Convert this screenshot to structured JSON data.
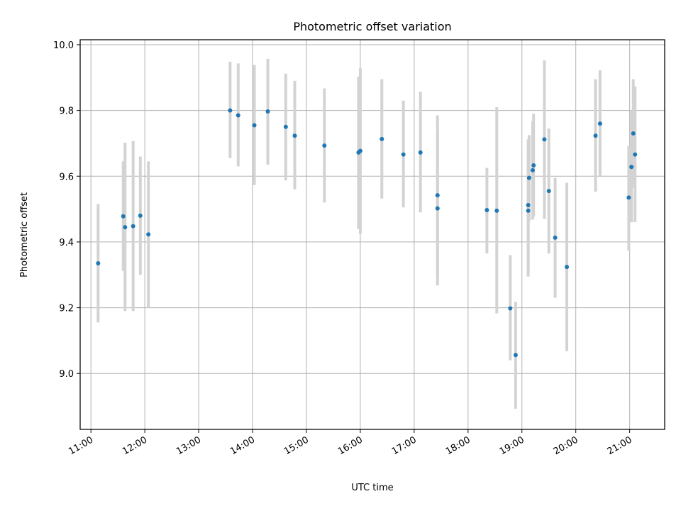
{
  "chart_data": {
    "type": "scatter",
    "title": "Photometric offset variation",
    "xlabel": "UTC time",
    "ylabel": "Photometric offset",
    "x_unit": "UTC time (HH:MM)",
    "xlim": [
      "10:48",
      "21:39"
    ],
    "ylim": [
      8.83,
      10.015
    ],
    "grid": true,
    "x_ticks": [
      "11:00",
      "12:00",
      "13:00",
      "14:00",
      "15:00",
      "16:00",
      "17:00",
      "18:00",
      "19:00",
      "20:00",
      "21:00"
    ],
    "y_ticks": [
      "9.0",
      "9.2",
      "9.4",
      "9.6",
      "9.8",
      "10.0"
    ],
    "marker_color": "#1f77b4",
    "errorbar_color": "#d3d3d3",
    "points": [
      {
        "x": "11:08",
        "y": 9.335,
        "lo": 9.155,
        "hi": 9.515
      },
      {
        "x": "11:36",
        "y": 9.478,
        "lo": 9.312,
        "hi": 9.645
      },
      {
        "x": "11:38",
        "y": 9.445,
        "lo": 9.19,
        "hi": 9.702
      },
      {
        "x": "11:47",
        "y": 9.448,
        "lo": 9.19,
        "hi": 9.707
      },
      {
        "x": "11:55",
        "y": 9.48,
        "lo": 9.3,
        "hi": 9.66
      },
      {
        "x": "12:04",
        "y": 9.423,
        "lo": 9.2,
        "hi": 9.645
      },
      {
        "x": "13:35",
        "y": 9.8,
        "lo": 9.655,
        "hi": 9.948
      },
      {
        "x": "13:44",
        "y": 9.785,
        "lo": 9.63,
        "hi": 9.943
      },
      {
        "x": "14:02",
        "y": 9.755,
        "lo": 9.573,
        "hi": 9.938
      },
      {
        "x": "14:17",
        "y": 9.797,
        "lo": 9.635,
        "hi": 9.957
      },
      {
        "x": "14:37",
        "y": 9.75,
        "lo": 9.587,
        "hi": 9.912
      },
      {
        "x": "14:47",
        "y": 9.723,
        "lo": 9.56,
        "hi": 9.89
      },
      {
        "x": "15:20",
        "y": 9.693,
        "lo": 9.52,
        "hi": 9.867
      },
      {
        "x": "15:58",
        "y": 9.672,
        "lo": 9.44,
        "hi": 9.903
      },
      {
        "x": "16:00",
        "y": 9.677,
        "lo": 9.425,
        "hi": 9.928
      },
      {
        "x": "16:24",
        "y": 9.713,
        "lo": 9.532,
        "hi": 9.895
      },
      {
        "x": "16:48",
        "y": 9.666,
        "lo": 9.505,
        "hi": 9.83
      },
      {
        "x": "17:07",
        "y": 9.672,
        "lo": 9.49,
        "hi": 9.857
      },
      {
        "x": "17:26",
        "y": 9.542,
        "lo": 9.3,
        "hi": 9.785
      },
      {
        "x": "17:26",
        "y": 9.502,
        "lo": 9.268,
        "hi": 9.735
      },
      {
        "x": "18:21",
        "y": 9.497,
        "lo": 9.365,
        "hi": 9.625
      },
      {
        "x": "18:32",
        "y": 9.495,
        "lo": 9.183,
        "hi": 9.81
      },
      {
        "x": "18:47",
        "y": 9.198,
        "lo": 9.04,
        "hi": 9.36
      },
      {
        "x": "18:53",
        "y": 9.056,
        "lo": 8.893,
        "hi": 9.218
      },
      {
        "x": "19:07",
        "y": 9.512,
        "lo": 9.31,
        "hi": 9.712
      },
      {
        "x": "19:07",
        "y": 9.495,
        "lo": 9.295,
        "hi": 9.692
      },
      {
        "x": "19:08",
        "y": 9.595,
        "lo": 9.463,
        "hi": 9.725
      },
      {
        "x": "19:12",
        "y": 9.618,
        "lo": 9.468,
        "hi": 9.767
      },
      {
        "x": "19:13",
        "y": 9.633,
        "lo": 9.477,
        "hi": 9.79
      },
      {
        "x": "19:25",
        "y": 9.712,
        "lo": 9.47,
        "hi": 9.952
      },
      {
        "x": "19:30",
        "y": 9.555,
        "lo": 9.365,
        "hi": 9.745
      },
      {
        "x": "19:37",
        "y": 9.413,
        "lo": 9.23,
        "hi": 9.595
      },
      {
        "x": "19:50",
        "y": 9.324,
        "lo": 9.068,
        "hi": 9.58
      },
      {
        "x": "20:22",
        "y": 9.723,
        "lo": 9.553,
        "hi": 9.895
      },
      {
        "x": "20:27",
        "y": 9.76,
        "lo": 9.6,
        "hi": 9.922
      },
      {
        "x": "20:59",
        "y": 9.535,
        "lo": 9.373,
        "hi": 9.692
      },
      {
        "x": "21:02",
        "y": 9.628,
        "lo": 9.46,
        "hi": 9.8
      },
      {
        "x": "21:04",
        "y": 9.73,
        "lo": 9.565,
        "hi": 9.895
      },
      {
        "x": "21:06",
        "y": 9.666,
        "lo": 9.46,
        "hi": 9.873
      }
    ]
  }
}
